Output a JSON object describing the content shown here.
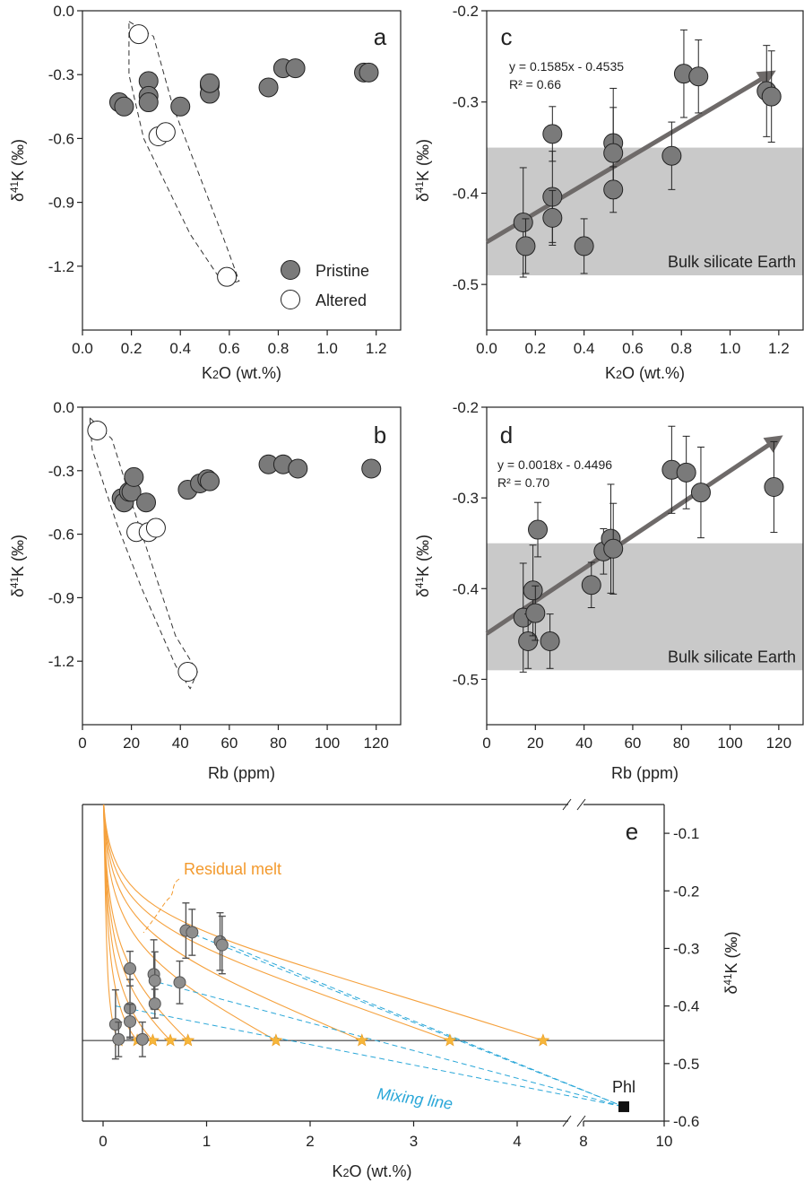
{
  "chart_data": [
    {
      "panel": "a",
      "type": "scatter",
      "xlabel": "K2O (wt.%)",
      "ylabel": "δ41K (‰)",
      "xlim": [
        0.0,
        1.3
      ],
      "ylim": [
        -1.5,
        0.0
      ],
      "xticks": [
        "0.0",
        "0.2",
        "0.4",
        "0.6",
        "0.8",
        "1.0",
        "1.2"
      ],
      "yticks": [
        "0.0",
        "-0.3",
        "-0.6",
        "-0.9",
        "-1.2"
      ],
      "legend": {
        "position": "bottom-right",
        "pristine": "Pristine",
        "altered": "Altered"
      },
      "series": [
        {
          "name": "Pristine",
          "points": [
            {
              "x": 0.15,
              "y": -0.43
            },
            {
              "x": 0.17,
              "y": -0.45
            },
            {
              "x": 0.27,
              "y": -0.33
            },
            {
              "x": 0.27,
              "y": -0.4
            },
            {
              "x": 0.27,
              "y": -0.43
            },
            {
              "x": 0.4,
              "y": -0.45
            },
            {
              "x": 0.52,
              "y": -0.35
            },
            {
              "x": 0.52,
              "y": -0.39
            },
            {
              "x": 0.52,
              "y": -0.34
            },
            {
              "x": 0.76,
              "y": -0.36
            },
            {
              "x": 0.82,
              "y": -0.27
            },
            {
              "x": 0.87,
              "y": -0.27
            },
            {
              "x": 1.15,
              "y": -0.29
            },
            {
              "x": 1.17,
              "y": -0.29
            }
          ]
        },
        {
          "name": "Altered",
          "points": [
            {
              "x": 0.23,
              "y": -0.11
            },
            {
              "x": 0.31,
              "y": -0.59
            },
            {
              "x": 0.34,
              "y": -0.57
            },
            {
              "x": 0.59,
              "y": -1.25
            }
          ]
        }
      ]
    },
    {
      "panel": "b",
      "type": "scatter",
      "xlabel": "Rb (ppm)",
      "ylabel": "δ41K (‰)",
      "xlim": [
        0,
        130
      ],
      "ylim": [
        -1.5,
        0.0
      ],
      "xticks": [
        "0",
        "20",
        "40",
        "60",
        "80",
        "100",
        "120"
      ],
      "yticks": [
        "0.0",
        "-0.3",
        "-0.6",
        "-0.9",
        "-1.2"
      ],
      "series": [
        {
          "name": "Pristine",
          "points": [
            {
              "x": 16,
              "y": -0.43
            },
            {
              "x": 17,
              "y": -0.45
            },
            {
              "x": 19,
              "y": -0.4
            },
            {
              "x": 20,
              "y": -0.4
            },
            {
              "x": 21,
              "y": -0.33
            },
            {
              "x": 26,
              "y": -0.45
            },
            {
              "x": 43,
              "y": -0.39
            },
            {
              "x": 48,
              "y": -0.36
            },
            {
              "x": 51,
              "y": -0.34
            },
            {
              "x": 52,
              "y": -0.35
            },
            {
              "x": 76,
              "y": -0.27
            },
            {
              "x": 82,
              "y": -0.27
            },
            {
              "x": 88,
              "y": -0.29
            },
            {
              "x": 118,
              "y": -0.29
            }
          ]
        },
        {
          "name": "Altered",
          "points": [
            {
              "x": 6,
              "y": -0.11
            },
            {
              "x": 22,
              "y": -0.59
            },
            {
              "x": 27,
              "y": -0.59
            },
            {
              "x": 30,
              "y": -0.57
            },
            {
              "x": 43,
              "y": -1.25
            }
          ]
        }
      ]
    },
    {
      "panel": "c",
      "type": "scatter",
      "xlabel": "K2O (wt.%)",
      "ylabel": "δ41K (‰)",
      "xlim": [
        0.0,
        1.3
      ],
      "ylim": [
        -0.55,
        -0.2
      ],
      "xticks": [
        "0.0",
        "0.2",
        "0.4",
        "0.6",
        "0.8",
        "1.0",
        "1.2"
      ],
      "yticks": [
        "-0.2",
        "-0.3",
        "-0.4",
        "-0.5"
      ],
      "equation": "y = 0.1585x - 0.4535",
      "r2": "R² = 0.66",
      "band_label": "Bulk silicate Earth",
      "band": [
        -0.49,
        -0.35
      ],
      "trend": {
        "x0": 0.0,
        "y0": -0.4535,
        "x1": 1.16,
        "y1": -0.27
      },
      "points": [
        {
          "x": 0.15,
          "y": -0.432,
          "err": 0.06
        },
        {
          "x": 0.16,
          "y": -0.458,
          "err": 0.03
        },
        {
          "x": 0.27,
          "y": -0.335,
          "err": 0.03
        },
        {
          "x": 0.27,
          "y": -0.404,
          "err": 0.05
        },
        {
          "x": 0.27,
          "y": -0.427,
          "err": 0.03
        },
        {
          "x": 0.4,
          "y": -0.458,
          "err": 0.03
        },
        {
          "x": 0.52,
          "y": -0.345,
          "err": 0.06
        },
        {
          "x": 0.52,
          "y": -0.356,
          "err": 0.05
        },
        {
          "x": 0.52,
          "y": -0.396,
          "err": 0.025
        },
        {
          "x": 0.76,
          "y": -0.359,
          "err": 0.037
        },
        {
          "x": 0.81,
          "y": -0.269,
          "err": 0.048
        },
        {
          "x": 0.87,
          "y": -0.272,
          "err": 0.04
        },
        {
          "x": 1.15,
          "y": -0.288,
          "err": 0.05
        },
        {
          "x": 1.17,
          "y": -0.294,
          "err": 0.05
        }
      ]
    },
    {
      "panel": "d",
      "type": "scatter",
      "xlabel": "Rb (ppm)",
      "ylabel": "δ41K (‰)",
      "xlim": [
        0,
        130
      ],
      "ylim": [
        -0.55,
        -0.2
      ],
      "xticks": [
        "0",
        "20",
        "40",
        "60",
        "80",
        "100",
        "120"
      ],
      "yticks": [
        "-0.2",
        "-0.3",
        "-0.4",
        "-0.5"
      ],
      "equation": "y = 0.0018x - 0.4496",
      "r2": "R² = 0.70",
      "band_label": "Bulk silicate Earth",
      "band": [
        -0.49,
        -0.35
      ],
      "trend": {
        "x0": 0,
        "y0": -0.4496,
        "x1": 119,
        "y1": -0.236
      },
      "points": [
        {
          "x": 15,
          "y": -0.432,
          "err": 0.06
        },
        {
          "x": 17,
          "y": -0.458,
          "err": 0.03
        },
        {
          "x": 19,
          "y": -0.402,
          "err": 0.05
        },
        {
          "x": 20,
          "y": -0.427,
          "err": 0.03
        },
        {
          "x": 21,
          "y": -0.335,
          "err": 0.03
        },
        {
          "x": 26,
          "y": -0.458,
          "err": 0.03
        },
        {
          "x": 43,
          "y": -0.396,
          "err": 0.025
        },
        {
          "x": 48,
          "y": -0.359,
          "err": 0.025
        },
        {
          "x": 51,
          "y": -0.345,
          "err": 0.06
        },
        {
          "x": 52,
          "y": -0.356,
          "err": 0.05
        },
        {
          "x": 76,
          "y": -0.269,
          "err": 0.048
        },
        {
          "x": 82,
          "y": -0.272,
          "err": 0.04
        },
        {
          "x": 88,
          "y": -0.294,
          "err": 0.05
        },
        {
          "x": 118,
          "y": -0.288,
          "err": 0.05
        }
      ]
    },
    {
      "panel": "e",
      "type": "line",
      "xlabel": "K2O (wt.%)",
      "ylabel": "δ41K (‰)",
      "ylim": [
        -0.6,
        -0.05
      ],
      "xticks": [
        "0",
        "1",
        "2",
        "3",
        "4",
        "8",
        "10"
      ],
      "yticks": [
        "-0.1",
        "-0.2",
        "-0.3",
        "-0.4",
        "-0.5",
        "-0.6"
      ],
      "axis_break": "between 4.5 and 8",
      "residual_melt_label": "Residual melt",
      "mixing_label": "Mixing line",
      "end_member_label": "Phl",
      "end_member": {
        "x": 9.0,
        "y": -0.575
      },
      "baseline_y": -0.46,
      "stars_x": [
        0.15,
        0.33,
        0.48,
        0.65,
        0.82,
        1.67,
        2.5,
        3.35,
        4.25
      ],
      "points": [
        {
          "x": 0.12,
          "y": -0.432,
          "err": 0.06
        },
        {
          "x": 0.15,
          "y": -0.458,
          "err": 0.03
        },
        {
          "x": 0.26,
          "y": -0.335,
          "err": 0.03
        },
        {
          "x": 0.26,
          "y": -0.404,
          "err": 0.05
        },
        {
          "x": 0.26,
          "y": -0.427,
          "err": 0.03
        },
        {
          "x": 0.38,
          "y": -0.458,
          "err": 0.03
        },
        {
          "x": 0.49,
          "y": -0.345,
          "err": 0.06
        },
        {
          "x": 0.5,
          "y": -0.356,
          "err": 0.05
        },
        {
          "x": 0.5,
          "y": -0.396,
          "err": 0.025
        },
        {
          "x": 0.74,
          "y": -0.359,
          "err": 0.037
        },
        {
          "x": 0.8,
          "y": -0.269,
          "err": 0.048
        },
        {
          "x": 0.86,
          "y": -0.272,
          "err": 0.04
        },
        {
          "x": 1.13,
          "y": -0.288,
          "err": 0.05
        },
        {
          "x": 1.15,
          "y": -0.294,
          "err": 0.05
        }
      ],
      "mixing_sources": [
        {
          "x": 0.12,
          "y": -0.4
        },
        {
          "x": 0.45,
          "y": -0.355
        },
        {
          "x": 0.8,
          "y": -0.27
        },
        {
          "x": 1.15,
          "y": -0.29
        }
      ]
    }
  ]
}
